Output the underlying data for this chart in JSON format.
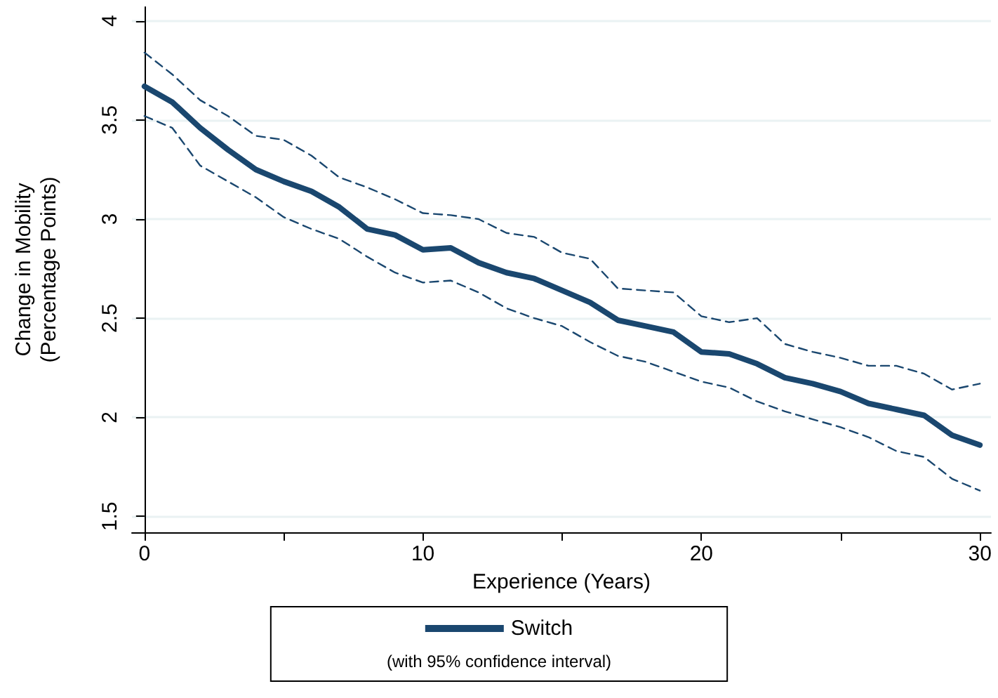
{
  "chart_data": {
    "type": "line",
    "xlabel": "Experience (Years)",
    "ylabel": "Change in Mobility\n(Percentage Points)",
    "x": [
      0,
      1,
      2,
      3,
      4,
      5,
      6,
      7,
      8,
      9,
      10,
      11,
      12,
      13,
      14,
      15,
      16,
      17,
      18,
      19,
      20,
      21,
      22,
      23,
      24,
      25,
      26,
      27,
      28,
      29,
      30
    ],
    "series": [
      {
        "name": "Switch",
        "color": "#1a476f",
        "line_style": "solid",
        "values": [
          3.67,
          3.59,
          3.46,
          3.35,
          3.25,
          3.19,
          3.14,
          3.06,
          2.95,
          2.92,
          2.845,
          2.855,
          2.78,
          2.73,
          2.7,
          2.64,
          2.58,
          2.49,
          2.46,
          2.43,
          2.33,
          2.32,
          2.27,
          2.2,
          2.17,
          2.13,
          2.07,
          2.04,
          2.01,
          1.91,
          1.86
        ]
      },
      {
        "color": "#1a476f",
        "line_style": "dashed",
        "values": [
          3.84,
          3.73,
          3.6,
          3.52,
          3.42,
          3.4,
          3.32,
          3.21,
          3.16,
          3.1,
          3.03,
          3.02,
          3.0,
          2.93,
          2.91,
          2.83,
          2.8,
          2.65,
          2.64,
          2.63,
          2.51,
          2.48,
          2.5,
          2.37,
          2.33,
          2.3,
          2.26,
          2.26,
          2.22,
          2.14,
          2.17
        ]
      },
      {
        "color": "#1a476f",
        "line_style": "dashed",
        "values": [
          3.52,
          3.46,
          3.27,
          3.19,
          3.11,
          3.01,
          2.95,
          2.9,
          2.81,
          2.73,
          2.68,
          2.69,
          2.63,
          2.55,
          2.5,
          2.46,
          2.38,
          2.31,
          2.28,
          2.23,
          2.18,
          2.15,
          2.08,
          2.03,
          1.99,
          1.95,
          1.9,
          1.83,
          1.8,
          1.69,
          1.63
        ]
      }
    ],
    "xlim": [
      -0.45,
      30.4
    ],
    "xticks": [
      0,
      {
        "value": 5,
        "label": null
      },
      10,
      {
        "value": 15,
        "label": null
      },
      20,
      {
        "value": 25,
        "label": null
      },
      30
    ],
    "ylim": [
      1.42,
      4.07
    ],
    "yticks": [
      1.5,
      2,
      2.5,
      3,
      3.5,
      4
    ],
    "grid": "y",
    "legend": "bottom",
    "marker": "none",
    "annotations": [
      "(with 95% confidence interval)"
    ]
  }
}
